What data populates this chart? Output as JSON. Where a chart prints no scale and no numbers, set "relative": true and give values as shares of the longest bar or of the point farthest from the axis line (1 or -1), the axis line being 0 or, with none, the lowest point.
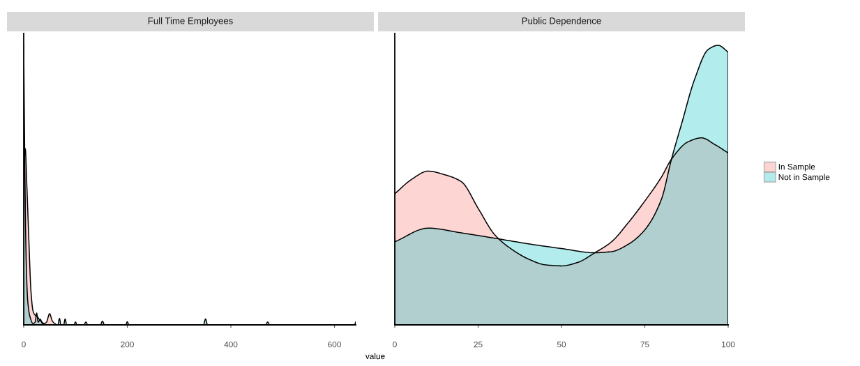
{
  "chart_data": [
    {
      "type": "area",
      "title": "Full Time Employees",
      "xlabel": "value",
      "relative": true,
      "xlim": [
        0,
        641
      ],
      "xticks": [
        0,
        200,
        400,
        600
      ],
      "tick_labels": "x",
      "series": [
        {
          "color": "#f8766d",
          "x": [
            0,
            3,
            6,
            10,
            14,
            18,
            22,
            26,
            30,
            35,
            40,
            44,
            50,
            55,
            60,
            65,
            116,
            120,
            124,
            641
          ],
          "values": [
            0.55,
            0.63,
            0.5,
            0.3,
            0.12,
            0.05,
            0.035,
            0.03,
            0.02,
            0.01,
            0.005,
            0.01,
            0.04,
            0.015,
            0.005,
            0,
            0,
            0.01,
            0,
            0
          ]
        },
        {
          "color": "#00bfc4",
          "x": [
            0,
            2,
            4,
            6,
            8,
            12,
            18,
            22,
            25,
            28,
            32,
            36,
            45,
            66,
            69,
            72,
            77,
            80,
            83,
            97,
            100,
            103,
            148,
            152,
            156,
            197,
            200,
            203,
            347,
            351,
            355,
            467,
            471,
            475,
            638,
            641
          ],
          "values": [
            1.0,
            0.6,
            0.3,
            0.15,
            0.08,
            0.03,
            0.005,
            0.01,
            0.042,
            0.01,
            0.02,
            0.005,
            0,
            0,
            0.023,
            0,
            0,
            0.021,
            0,
            0,
            0.01,
            0,
            0,
            0.013,
            0,
            0,
            0.011,
            0,
            0,
            0.021,
            0,
            0,
            0.01,
            0,
            0,
            0.01
          ]
        }
      ]
    },
    {
      "type": "area",
      "title": "Public Dependence",
      "relative": true,
      "xlim": [
        0,
        100
      ],
      "xticks": [
        0,
        25,
        50,
        75,
        100
      ],
      "tick_labels": "x",
      "legend": "right",
      "series": [
        {
          "name": "In Sample",
          "color": "#f8766d",
          "x": [
            0,
            5,
            10,
            15,
            20,
            25,
            30,
            35,
            40,
            45,
            50,
            55,
            60,
            65,
            70,
            75,
            80,
            83,
            88,
            92,
            96,
            100
          ],
          "values": [
            0.469,
            0.52,
            0.55,
            0.537,
            0.512,
            0.417,
            0.322,
            0.271,
            0.236,
            0.215,
            0.211,
            0.224,
            0.258,
            0.297,
            0.365,
            0.443,
            0.529,
            0.593,
            0.655,
            0.669,
            0.645,
            0.615
          ]
        },
        {
          "name": "Not in Sample",
          "color": "#00bfc4",
          "x": [
            0,
            10,
            20,
            30,
            40,
            50,
            60,
            65,
            70,
            75,
            80,
            83,
            86,
            90,
            94,
            97,
            100
          ],
          "values": [
            0.297,
            0.346,
            0.329,
            0.31,
            0.29,
            0.273,
            0.258,
            0.262,
            0.288,
            0.34,
            0.45,
            0.593,
            0.718,
            0.881,
            0.985,
            1.0,
            0.976
          ]
        }
      ]
    }
  ]
}
